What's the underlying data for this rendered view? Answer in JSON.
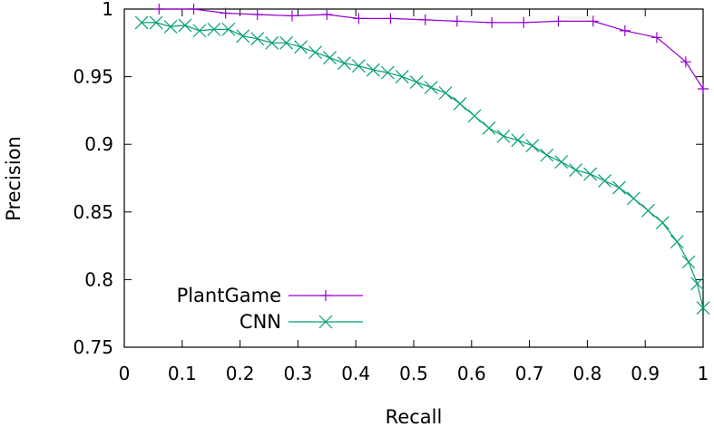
{
  "chart_data": {
    "type": "line",
    "title": "",
    "xlabel": "Recall",
    "ylabel": "Precision",
    "xlim": [
      0,
      1
    ],
    "ylim": [
      0.75,
      1
    ],
    "xticks": [
      0,
      0.1,
      0.2,
      0.3,
      0.4,
      0.5,
      0.6,
      0.7,
      0.8,
      0.9,
      1
    ],
    "xtick_labels": [
      "0",
      "0.1",
      "0.2",
      "0.3",
      "0.4",
      "0.5",
      "0.6",
      "0.7",
      "0.8",
      "0.9",
      "1"
    ],
    "yticks": [
      0.75,
      0.8,
      0.85,
      0.9,
      0.95,
      1
    ],
    "ytick_labels": [
      "0.75",
      "0.8",
      "0.85",
      "0.9",
      "0.95",
      "1"
    ],
    "grid": false,
    "legend": "bottom-left",
    "series": [
      {
        "name": "PlantGame",
        "color": "#9400d3",
        "marker": "plus",
        "x": [
          0.06,
          0.12,
          0.175,
          0.23,
          0.29,
          0.35,
          0.405,
          0.46,
          0.52,
          0.575,
          0.635,
          0.69,
          0.75,
          0.81,
          0.865,
          0.92,
          0.97,
          1.0
        ],
        "y": [
          1.0,
          1.0,
          0.997,
          0.996,
          0.995,
          0.996,
          0.993,
          0.993,
          0.992,
          0.991,
          0.99,
          0.99,
          0.991,
          0.991,
          0.984,
          0.979,
          0.961,
          0.941
        ]
      },
      {
        "name": "CNN",
        "color": "#009e73",
        "marker": "cross",
        "x": [
          0.03,
          0.055,
          0.08,
          0.105,
          0.13,
          0.155,
          0.18,
          0.205,
          0.23,
          0.255,
          0.28,
          0.305,
          0.33,
          0.355,
          0.38,
          0.405,
          0.43,
          0.455,
          0.48,
          0.505,
          0.53,
          0.555,
          0.58,
          0.605,
          0.63,
          0.655,
          0.68,
          0.705,
          0.73,
          0.755,
          0.78,
          0.805,
          0.83,
          0.855,
          0.88,
          0.905,
          0.93,
          0.955,
          0.975,
          0.99,
          1.0
        ],
        "y": [
          0.99,
          0.99,
          0.987,
          0.988,
          0.984,
          0.985,
          0.985,
          0.98,
          0.978,
          0.975,
          0.975,
          0.972,
          0.968,
          0.964,
          0.96,
          0.958,
          0.955,
          0.953,
          0.95,
          0.946,
          0.942,
          0.938,
          0.93,
          0.921,
          0.912,
          0.906,
          0.903,
          0.899,
          0.892,
          0.887,
          0.881,
          0.878,
          0.873,
          0.868,
          0.86,
          0.851,
          0.842,
          0.828,
          0.813,
          0.797,
          0.779
        ]
      }
    ]
  }
}
